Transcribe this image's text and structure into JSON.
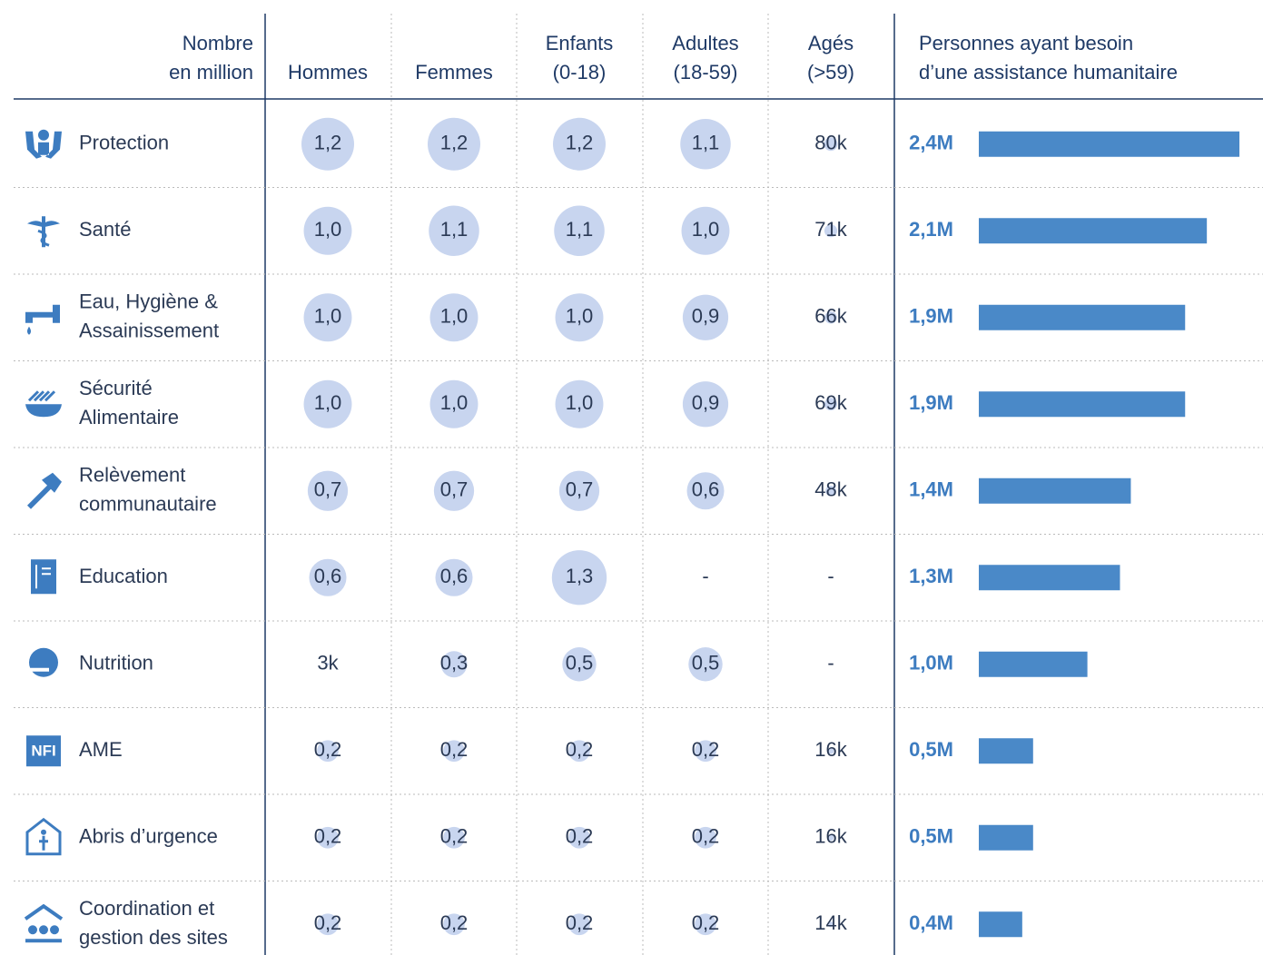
{
  "header": {
    "unit": [
      "Nombre",
      "en million"
    ],
    "columns": [
      [
        "Hommes"
      ],
      [
        "Femmes"
      ],
      [
        "Enfants",
        "(0-18)"
      ],
      [
        "Adultes",
        "(18-59)"
      ],
      [
        "Agés",
        "(>59)"
      ]
    ],
    "total": [
      "Personnes ayant besoin",
      "d’une assistance humanitaire"
    ]
  },
  "rows": [
    {
      "sector": [
        "Protection"
      ],
      "cells": [
        {
          "value": 1.2,
          "label": "1,2"
        },
        {
          "value": 1.2,
          "label": "1,2"
        },
        {
          "value": 1.2,
          "label": "1,2"
        },
        {
          "value": 1.1,
          "label": "1,1"
        },
        {
          "value": 0.08,
          "label": "80k"
        }
      ],
      "total": {
        "value": 2.4,
        "label": "2,4M"
      }
    },
    {
      "sector": [
        "Santé"
      ],
      "cells": [
        {
          "value": 1.0,
          "label": "1,0"
        },
        {
          "value": 1.1,
          "label": "1,1"
        },
        {
          "value": 1.1,
          "label": "1,1"
        },
        {
          "value": 1.0,
          "label": "1,0"
        },
        {
          "value": 0.071,
          "label": "71k"
        }
      ],
      "total": {
        "value": 2.1,
        "label": "2,1M"
      }
    },
    {
      "sector": [
        "Eau, Hygiène &",
        "Assainissement"
      ],
      "cells": [
        {
          "value": 1.0,
          "label": "1,0"
        },
        {
          "value": 1.0,
          "label": "1,0"
        },
        {
          "value": 1.0,
          "label": "1,0"
        },
        {
          "value": 0.9,
          "label": "0,9"
        },
        {
          "value": 0.066,
          "label": "66k"
        }
      ],
      "total": {
        "value": 1.9,
        "label": "1,9M"
      }
    },
    {
      "sector": [
        "Sécurité",
        "Alimentaire"
      ],
      "cells": [
        {
          "value": 1.0,
          "label": "1,0"
        },
        {
          "value": 1.0,
          "label": "1,0"
        },
        {
          "value": 1.0,
          "label": "1,0"
        },
        {
          "value": 0.9,
          "label": "0,9"
        },
        {
          "value": 0.069,
          "label": "69k"
        }
      ],
      "total": {
        "value": 1.9,
        "label": "1,9M"
      }
    },
    {
      "sector": [
        "Relèvement",
        "communautaire"
      ],
      "cells": [
        {
          "value": 0.7,
          "label": "0,7"
        },
        {
          "value": 0.7,
          "label": "0,7"
        },
        {
          "value": 0.7,
          "label": "0,7"
        },
        {
          "value": 0.6,
          "label": "0,6"
        },
        {
          "value": 0.048,
          "label": "48k"
        }
      ],
      "total": {
        "value": 1.4,
        "label": "1,4M"
      }
    },
    {
      "sector": [
        "Education"
      ],
      "cells": [
        {
          "value": 0.6,
          "label": "0,6"
        },
        {
          "value": 0.6,
          "label": "0,6"
        },
        {
          "value": 1.3,
          "label": "1,3"
        },
        {
          "value": null,
          "label": "-"
        },
        {
          "value": null,
          "label": "-"
        }
      ],
      "total": {
        "value": 1.3,
        "label": "1,3M"
      }
    },
    {
      "sector": [
        "Nutrition"
      ],
      "cells": [
        {
          "value": 0.003,
          "label": "3k"
        },
        {
          "value": 0.3,
          "label": "0,3"
        },
        {
          "value": 0.5,
          "label": "0,5"
        },
        {
          "value": 0.5,
          "label": "0,5"
        },
        {
          "value": null,
          "label": "-"
        }
      ],
      "total": {
        "value": 1.0,
        "label": "1,0M"
      }
    },
    {
      "sector": [
        "AME"
      ],
      "icon_label": "NFI",
      "cells": [
        {
          "value": 0.2,
          "label": "0,2"
        },
        {
          "value": 0.2,
          "label": "0,2"
        },
        {
          "value": 0.2,
          "label": "0,2"
        },
        {
          "value": 0.2,
          "label": "0,2"
        },
        {
          "value": 0.016,
          "label": "16k"
        }
      ],
      "total": {
        "value": 0.5,
        "label": "0,5M"
      }
    },
    {
      "sector": [
        "Abris d’urgence"
      ],
      "cells": [
        {
          "value": 0.2,
          "label": "0,2"
        },
        {
          "value": 0.2,
          "label": "0,2"
        },
        {
          "value": 0.2,
          "label": "0,2"
        },
        {
          "value": 0.2,
          "label": "0,2"
        },
        {
          "value": 0.016,
          "label": "16k"
        }
      ],
      "total": {
        "value": 0.5,
        "label": "0,5M"
      }
    },
    {
      "sector": [
        "Coordination et",
        "gestion des sites"
      ],
      "cells": [
        {
          "value": 0.2,
          "label": "0,2"
        },
        {
          "value": 0.2,
          "label": "0,2"
        },
        {
          "value": 0.2,
          "label": "0,2"
        },
        {
          "value": 0.2,
          "label": "0,2"
        },
        {
          "value": 0.014,
          "label": "14k"
        }
      ],
      "total": {
        "value": 0.4,
        "label": "0,4M"
      }
    }
  ]
}
